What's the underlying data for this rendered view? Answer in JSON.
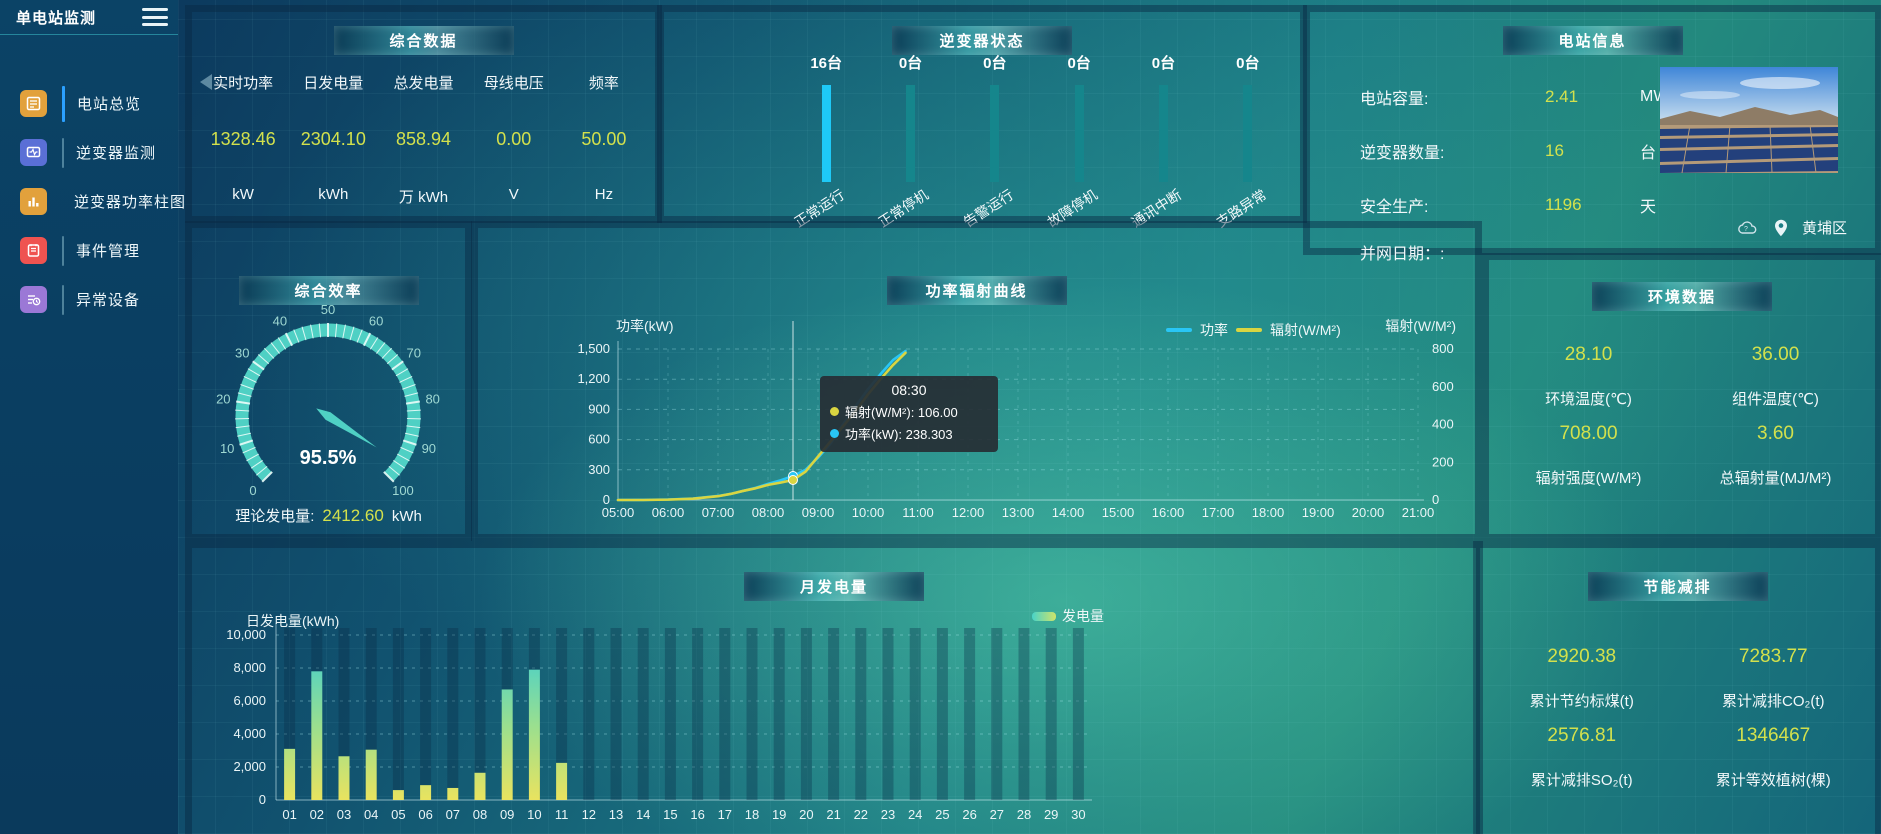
{
  "sidebar": {
    "title": "单电站监测",
    "items": [
      {
        "label": "电站总览",
        "active": true
      },
      {
        "label": "逆变器监测",
        "active": false
      },
      {
        "label": "逆变器功率柱图",
        "active": false
      },
      {
        "label": "事件管理",
        "active": false
      },
      {
        "label": "异常设备",
        "active": false
      }
    ]
  },
  "panels": {
    "summary": {
      "title": "综合数据",
      "metrics": [
        {
          "label": "实时功率",
          "value": "1328.46",
          "unit": "kW"
        },
        {
          "label": "日发电量",
          "value": "2304.10",
          "unit": "kWh"
        },
        {
          "label": "总发电量",
          "value": "858.94",
          "unit": "万 kWh"
        },
        {
          "label": "母线电压",
          "value": "0.00",
          "unit": "V"
        },
        {
          "label": "频率",
          "value": "50.00",
          "unit": "Hz"
        }
      ]
    },
    "inverter_status": {
      "title": "逆变器状态",
      "bars": [
        {
          "count": "16台",
          "label": "正常运行",
          "highlight": true
        },
        {
          "count": "0台",
          "label": "正常停机",
          "highlight": false
        },
        {
          "count": "0台",
          "label": "告警运行",
          "highlight": false
        },
        {
          "count": "0台",
          "label": "故障停机",
          "highlight": false
        },
        {
          "count": "0台",
          "label": "通讯中断",
          "highlight": false
        },
        {
          "count": "0台",
          "label": "支路异常",
          "highlight": false
        }
      ],
      "highlight_color": "#1ec9f7",
      "normal_color": "#15868c"
    },
    "station_info": {
      "title": "电站信息",
      "rows": [
        {
          "label": "电站容量:",
          "value": "2.41",
          "unit": "MW"
        },
        {
          "label": "逆变器数量:",
          "value": "16",
          "unit": "台"
        },
        {
          "label": "安全生产:",
          "value": "1196",
          "unit": "天"
        },
        {
          "label": "并网日期：:",
          "value": "",
          "unit": ""
        }
      ],
      "location": "黄埔区"
    },
    "efficiency": {
      "title": "综合效率",
      "footer_label": "理论发电量:",
      "footer_value": "2412.60",
      "footer_unit": "kWh"
    },
    "power_curve": {
      "title": "功率辐射曲线"
    },
    "environment": {
      "title": "环境数据",
      "metrics": [
        {
          "value": "28.10",
          "label": "环境温度(℃)"
        },
        {
          "value": "36.00",
          "label": "组件温度(℃)"
        },
        {
          "value": "708.00",
          "label": "辐射强度(W/M²)"
        },
        {
          "value": "3.60",
          "label": "总辐射量(MJ/M²)"
        }
      ]
    },
    "monthly": {
      "title": "月发电量"
    },
    "saving": {
      "title": "节能减排",
      "metrics": [
        {
          "value": "2920.38",
          "label": "累计节约标煤(t)"
        },
        {
          "value": "7283.77",
          "label": "累计减排CO₂(t)"
        },
        {
          "value": "2576.81",
          "label": "累计减排SO₂(t)"
        },
        {
          "value": "1346467",
          "label": "累计等效植树(棵)"
        }
      ]
    }
  },
  "chart_data": [
    {
      "id": "power_curve",
      "type": "line",
      "title": "功率辐射曲线",
      "ylabel_left": "功率(kW)",
      "ylabel_right": "辐射(W/M²)",
      "ylim_left": [
        0,
        1500
      ],
      "ylim_right": [
        0,
        800
      ],
      "y_ticks_left": [
        0,
        300,
        600,
        900,
        1200,
        1500
      ],
      "y_ticks_right": [
        0,
        200,
        400,
        600,
        800
      ],
      "x_ticks": [
        "05:00",
        "06:00",
        "07:00",
        "08:00",
        "09:00",
        "10:00",
        "11:00",
        "12:00",
        "13:00",
        "14:00",
        "15:00",
        "16:00",
        "17:00",
        "18:00",
        "19:00",
        "20:00",
        "21:00"
      ],
      "x_range_hours": [
        5,
        21
      ],
      "grid": true,
      "legend_position": "top-right",
      "series": [
        {
          "name": "功率",
          "axis": "left",
          "color": "#29c6f6",
          "x": [
            5,
            5.5,
            6,
            6.5,
            7,
            7.25,
            7.5,
            7.75,
            8,
            8.25,
            8.5,
            8.75,
            9,
            9.25,
            9.5,
            9.75,
            10,
            10.25,
            10.5,
            10.75
          ],
          "y": [
            0,
            1,
            5,
            14,
            40,
            60,
            90,
            120,
            160,
            195,
            238.3,
            300,
            420,
            560,
            750,
            930,
            1100,
            1250,
            1390,
            1480
          ]
        },
        {
          "name": "辐射(W/M²)",
          "axis": "right",
          "color": "#d9d541",
          "x": [
            5,
            5.5,
            6,
            6.5,
            7,
            7.25,
            7.5,
            7.75,
            8,
            8.25,
            8.5,
            8.75,
            9,
            9.25,
            9.5,
            9.75,
            10,
            10.25,
            10.5,
            10.75
          ],
          "y": [
            0,
            0,
            2,
            7,
            20,
            32,
            48,
            62,
            80,
            92,
            106,
            150,
            230,
            310,
            390,
            470,
            560,
            640,
            715,
            780
          ]
        }
      ],
      "axis_pointer_x": 8.5,
      "tooltip": {
        "title": "08:30",
        "rows": [
          {
            "color": "#d9d541",
            "label": "辐射(W/M²)",
            "value": "106.00"
          },
          {
            "color": "#29c6f6",
            "label": "功率(kW)",
            "value": "238.303"
          }
        ]
      }
    },
    {
      "id": "monthly_energy",
      "type": "bar",
      "title": "月发电量",
      "ylabel": "日发电量(kWh)",
      "ylim": [
        0,
        10000
      ],
      "y_tick_step": 2000,
      "legend": [
        "发电量"
      ],
      "legend_position": "top-right",
      "grid": true,
      "categories": [
        "01",
        "02",
        "03",
        "04",
        "05",
        "06",
        "07",
        "08",
        "09",
        "10",
        "11",
        "12",
        "13",
        "14",
        "15",
        "16",
        "17",
        "18",
        "19",
        "20",
        "21",
        "22",
        "23",
        "24",
        "25",
        "26",
        "27",
        "28",
        "29",
        "30"
      ],
      "values": [
        3100,
        7800,
        2650,
        3050,
        600,
        900,
        730,
        1650,
        6700,
        7900,
        2250,
        0,
        0,
        0,
        0,
        0,
        0,
        0,
        0,
        0,
        0,
        0,
        0,
        0,
        0,
        0,
        0,
        0,
        0,
        0
      ],
      "bar_gradient": [
        "#e9e35f",
        "#9adf8f",
        "#37cdd6"
      ]
    },
    {
      "id": "efficiency_gauge",
      "type": "gauge",
      "title": "综合效率",
      "min": 0,
      "max": 100,
      "value": 95.5,
      "label": "95.5%",
      "major_ticks": [
        0,
        10,
        20,
        30,
        40,
        50,
        60,
        70,
        80,
        90,
        100
      ],
      "color": "#4fd0c4"
    }
  ]
}
